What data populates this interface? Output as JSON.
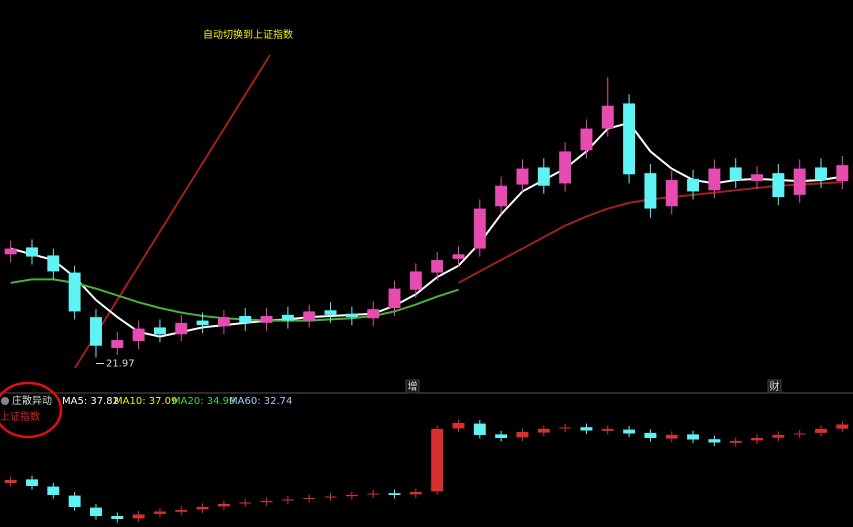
{
  "annotation": {
    "title": "自动切换到上证指数",
    "color": "#f2f200"
  },
  "events": [
    {
      "label": "增"
    },
    {
      "label": "财"
    }
  ],
  "chart_data": [
    {
      "type": "candlestick",
      "up_color": "#e64bb0",
      "down_color": "#5ff3f3",
      "ylim": [
        20,
        48
      ],
      "open": [
        31.0,
        31.6,
        30.9,
        29.4,
        25.5,
        22.8,
        23.4,
        24.6,
        24.0,
        25.2,
        24.7,
        25.6,
        25.0,
        25.7,
        25.2,
        26.1,
        25.8,
        25.4,
        26.3,
        27.9,
        29.4,
        30.6,
        31.5,
        35.2,
        37.1,
        38.6,
        37.2,
        40.1,
        42.0,
        44.2,
        38.1,
        35.2,
        37.6,
        36.6,
        38.6,
        37.4,
        38.1,
        36.2,
        38.6,
        37.4
      ],
      "high": [
        32.2,
        32.3,
        31.5,
        30.0,
        26.2,
        24.2,
        25.2,
        25.3,
        25.7,
        25.9,
        26.1,
        26.3,
        26.3,
        26.4,
        26.6,
        26.8,
        26.4,
        26.9,
        28.7,
        30.2,
        31.2,
        31.7,
        35.8,
        37.8,
        39.3,
        39.4,
        40.8,
        42.8,
        46.5,
        45.0,
        38.9,
        38.3,
        38.4,
        39.3,
        39.4,
        38.7,
        38.9,
        39.3,
        39.4,
        39.6
      ],
      "low": [
        30.3,
        30.1,
        28.8,
        25.3,
        21.97,
        22.2,
        22.7,
        23.3,
        23.4,
        24.1,
        24.0,
        24.3,
        24.3,
        24.5,
        24.6,
        25.0,
        24.8,
        24.7,
        25.6,
        27.2,
        28.7,
        29.9,
        30.8,
        34.5,
        36.4,
        36.3,
        36.5,
        39.4,
        41.3,
        37.2,
        34.2,
        34.5,
        35.8,
        35.9,
        36.8,
        36.7,
        35.3,
        35.5,
        36.8,
        36.7
      ],
      "close": [
        31.5,
        30.8,
        29.5,
        26.0,
        23.0,
        23.5,
        24.5,
        24.0,
        25.0,
        24.8,
        25.5,
        25.0,
        25.6,
        25.2,
        26.0,
        25.7,
        25.5,
        26.2,
        28.0,
        29.5,
        30.5,
        31.0,
        35.0,
        37.0,
        38.5,
        37.0,
        40.0,
        42.0,
        44.0,
        38.0,
        35.0,
        37.5,
        36.5,
        38.5,
        37.5,
        38.0,
        36.0,
        38.5,
        37.5,
        38.8
      ],
      "lines": [
        {
          "color": "#ffffff",
          "values": [
            31.5,
            31,
            30.5,
            29,
            27,
            25.5,
            24.2,
            23.8,
            24.2,
            24.6,
            24.8,
            25,
            25.2,
            25.3,
            25.5,
            25.6,
            25.7,
            25.8,
            26.5,
            27.5,
            29,
            30,
            32,
            34.5,
            36.5,
            37.5,
            38.5,
            40,
            42,
            42.5,
            40,
            38.5,
            37.5,
            37.2,
            37.5,
            37.6,
            37.5,
            37.4,
            37.5,
            37.8
          ]
        },
        {
          "color": "#4caf3a",
          "values": [
            28.5,
            28.8,
            28.8,
            28.5,
            28,
            27.4,
            26.8,
            26.3,
            25.9,
            25.6,
            25.4,
            25.3,
            25.2,
            25.2,
            25.2,
            25.3,
            25.4,
            25.6,
            26,
            26.6,
            27.3,
            27.9,
            null,
            null,
            null,
            null,
            null,
            null,
            null,
            null,
            null,
            null,
            null,
            null,
            null,
            null,
            null,
            null,
            null,
            null
          ]
        },
        {
          "color": "#a0201c",
          "values": [
            null,
            null,
            null,
            null,
            null,
            null,
            null,
            null,
            null,
            null,
            null,
            null,
            null,
            null,
            null,
            null,
            null,
            null,
            null,
            null,
            null,
            28.5,
            29.5,
            30.5,
            31.5,
            32.5,
            33.5,
            34.3,
            35,
            35.5,
            35.8,
            36,
            36.2,
            36.4,
            36.6,
            36.8,
            37,
            37.1,
            37.2,
            37.3
          ]
        }
      ]
    },
    {
      "type": "candlestick",
      "label": "上证指数",
      "indicator": "庄散异动",
      "ma_labels": [
        {
          "text": "MA5: 37.82",
          "color": "#ffffff"
        },
        {
          "text": "MA10: 37.09",
          "color": "#f2f200"
        },
        {
          "text": "MA20: 34.99",
          "color": "#3fdc3f"
        },
        {
          "text": "MA60: 32.74",
          "color": "#9fd0ff"
        }
      ],
      "up_color": "#d83030",
      "down_color": "#5ff3f3",
      "ylim": [
        2900,
        3300
      ],
      "open": [
        3040,
        3052,
        3028,
        2998,
        2958,
        2930,
        2922,
        2937,
        2944,
        2952,
        2962,
        2972,
        2976,
        2982,
        2987,
        2992,
        2996,
        3002,
        3006,
        3002,
        3012,
        3222,
        3238,
        3202,
        3192,
        3208,
        3222,
        3226,
        3214,
        3218,
        3207,
        3188,
        3202,
        3186,
        3174,
        3182,
        3191,
        3202,
        3207,
        3221
      ],
      "high": [
        3062,
        3064,
        3040,
        3010,
        2970,
        2942,
        2947,
        2957,
        2962,
        2972,
        2982,
        2987,
        2992,
        2997,
        3002,
        3007,
        3012,
        3017,
        3018,
        3022,
        3232,
        3252,
        3250,
        3214,
        3222,
        3232,
        3237,
        3238,
        3232,
        3230,
        3219,
        3212,
        3214,
        3198,
        3192,
        3202,
        3212,
        3217,
        3232,
        3247
      ],
      "low": [
        3028,
        3018,
        2988,
        2948,
        2918,
        2908,
        2910,
        2925,
        2932,
        2940,
        2950,
        2960,
        2964,
        2970,
        2975,
        2980,
        2984,
        2990,
        2988,
        2990,
        3000,
        3210,
        3188,
        3178,
        3180,
        3196,
        3210,
        3203,
        3202,
        3193,
        3178,
        3176,
        3173,
        3163,
        3162,
        3170,
        3179,
        3190,
        3195,
        3209
      ],
      "close": [
        3050,
        3030,
        3000,
        2960,
        2930,
        2920,
        2935,
        2945,
        2950,
        2960,
        2970,
        2975,
        2980,
        2985,
        2990,
        2995,
        3000,
        3005,
        3000,
        3010,
        3220,
        3240,
        3200,
        3190,
        3210,
        3220,
        3225,
        3215,
        3220,
        3205,
        3190,
        3200,
        3185,
        3175,
        3180,
        3190,
        3200,
        3205,
        3220,
        3235
      ]
    }
  ]
}
